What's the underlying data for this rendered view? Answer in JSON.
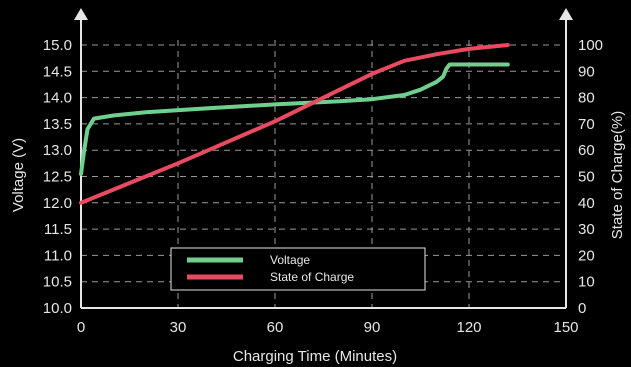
{
  "chart_data": {
    "type": "line",
    "title": "",
    "xlabel": "Charging Time (Minutes)",
    "ylabel_left": "Voltage (V)",
    "ylabel_right": "State of Charge(%)",
    "xlim": [
      0,
      150
    ],
    "ylim_left": [
      10.0,
      15.0
    ],
    "ylim_right": [
      0,
      100
    ],
    "x_ticks": [
      "0",
      "30",
      "60",
      "90",
      "120",
      "150"
    ],
    "y_left_ticks": [
      "10.0",
      "10.5",
      "11.0",
      "11.5",
      "12.0",
      "12.5",
      "13.0",
      "13.5",
      "14.0",
      "14.5",
      "15.0"
    ],
    "y_right_ticks": [
      "0",
      "10",
      "20",
      "30",
      "40",
      "50",
      "60",
      "70",
      "80",
      "90",
      "100"
    ],
    "grid": true,
    "legend_position": "bottom-center",
    "series": [
      {
        "name": "Voltage",
        "axis": "left",
        "color": "#6fcf8f",
        "points": [
          [
            0,
            12.55
          ],
          [
            1,
            13.0
          ],
          [
            2,
            13.4
          ],
          [
            4,
            13.6
          ],
          [
            10,
            13.66
          ],
          [
            20,
            13.72
          ],
          [
            40,
            13.8
          ],
          [
            60,
            13.87
          ],
          [
            80,
            13.93
          ],
          [
            90,
            13.97
          ],
          [
            100,
            14.05
          ],
          [
            105,
            14.15
          ],
          [
            110,
            14.3
          ],
          [
            112,
            14.4
          ],
          [
            113,
            14.55
          ],
          [
            114,
            14.63
          ],
          [
            132,
            14.63
          ]
        ]
      },
      {
        "name": "State of Charge",
        "axis": "right",
        "color": "#e84a5f",
        "points": [
          [
            0,
            40
          ],
          [
            30,
            55
          ],
          [
            60,
            71
          ],
          [
            80,
            83
          ],
          [
            90,
            89
          ],
          [
            100,
            94
          ],
          [
            110,
            96.5
          ],
          [
            120,
            98.5
          ],
          [
            132,
            100
          ]
        ]
      }
    ]
  }
}
